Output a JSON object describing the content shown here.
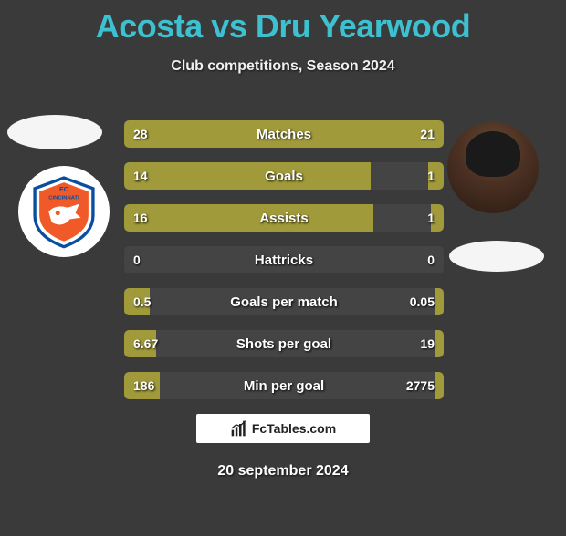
{
  "title_color": "#3dc1d0",
  "title": "Acosta vs Dru Yearwood",
  "subtitle": "Club competitions, Season 2024",
  "date": "20 september 2024",
  "watermark_text": "FcTables.com",
  "bar_left_color": "#a09a3a",
  "bar_right_color": "#a09a3a",
  "club_left": {
    "primary": "#f05a28",
    "secondary": "#0a4ea0",
    "text": "FC",
    "text2": "CINCINNATI"
  },
  "stats": [
    {
      "label": "Matches",
      "left_val": "28",
      "right_val": "21",
      "left_pct": 57,
      "right_pct": 43
    },
    {
      "label": "Goals",
      "left_val": "14",
      "right_val": "1",
      "left_pct": 77,
      "right_pct": 5
    },
    {
      "label": "Assists",
      "left_val": "16",
      "right_val": "1",
      "left_pct": 78,
      "right_pct": 4
    },
    {
      "label": "Hattricks",
      "left_val": "0",
      "right_val": "0",
      "left_pct": 0,
      "right_pct": 0
    },
    {
      "label": "Goals per match",
      "left_val": "0.5",
      "right_val": "0.05",
      "left_pct": 8,
      "right_pct": 3
    },
    {
      "label": "Shots per goal",
      "left_val": "6.67",
      "right_val": "19",
      "left_pct": 10,
      "right_pct": 3
    },
    {
      "label": "Min per goal",
      "left_val": "186",
      "right_val": "2775",
      "left_pct": 11,
      "right_pct": 3
    }
  ]
}
